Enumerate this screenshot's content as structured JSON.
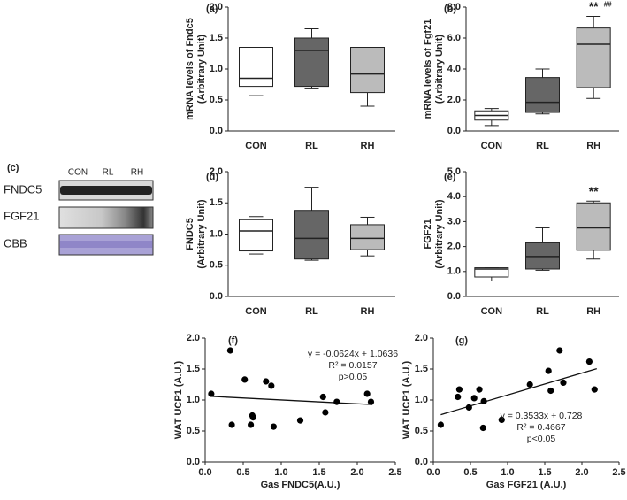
{
  "chart_data": [
    {
      "type": "box",
      "label": "(a)",
      "ylabel": [
        "mRNA levels of Fndc5",
        "(Arbitrary Unit)"
      ],
      "categories": [
        "CON",
        "RL",
        "RH"
      ],
      "colors": [
        "#ffffff",
        "#666666",
        "#bbbbbb"
      ],
      "boxes": [
        {
          "min": 0.57,
          "q1": 0.72,
          "median": 0.85,
          "q3": 1.35,
          "max": 1.55
        },
        {
          "min": 0.68,
          "q1": 0.72,
          "median": 1.3,
          "q3": 1.5,
          "max": 1.65
        },
        {
          "min": 0.4,
          "q1": 0.62,
          "median": 0.92,
          "q3": 1.35,
          "max": 1.35
        }
      ],
      "ylim": [
        0,
        2
      ],
      "yticks": [
        {
          "value": 0,
          "label": "0.0"
        },
        0.5,
        {
          "value": 1,
          "label": "1.0"
        },
        1.5,
        {
          "value": 2,
          "label": "2.0"
        }
      ]
    },
    {
      "type": "box",
      "label": "(b)",
      "ylabel": [
        "mRNA levels of Fgf21",
        "(Arbitrary Unit)"
      ],
      "categories": [
        "CON",
        "RL",
        "RH"
      ],
      "colors": [
        "#ffffff",
        "#666666",
        "#bbbbbb"
      ],
      "boxes": [
        {
          "min": 0.35,
          "q1": 0.7,
          "median": 1.0,
          "q3": 1.3,
          "max": 1.45
        },
        {
          "min": 1.1,
          "q1": 1.2,
          "median": 1.85,
          "q3": 3.45,
          "max": 4.0
        },
        {
          "min": 2.1,
          "q1": 2.8,
          "median": 5.6,
          "q3": 6.65,
          "max": 7.4
        }
      ],
      "annotations": [
        "**",
        "##"
      ],
      "ylim": [
        0,
        8
      ],
      "yticks": [
        {
          "value": 0,
          "label": "0.0"
        },
        {
          "value": 2,
          "label": "2.0"
        },
        {
          "value": 4,
          "label": "4.0"
        },
        {
          "value": 6,
          "label": "6.0"
        },
        {
          "value": 8,
          "label": "8.0"
        }
      ]
    },
    {
      "type": "box",
      "label": "(d)",
      "ylabel": [
        "FNDC5",
        "(Arbitrary Unit)"
      ],
      "categories": [
        "CON",
        "RL",
        "RH"
      ],
      "colors": [
        "#ffffff",
        "#666666",
        "#bbbbbb"
      ],
      "boxes": [
        {
          "min": 0.68,
          "q1": 0.73,
          "median": 1.05,
          "q3": 1.23,
          "max": 1.28
        },
        {
          "min": 0.58,
          "q1": 0.6,
          "median": 0.93,
          "q3": 1.38,
          "max": 1.75
        },
        {
          "min": 0.65,
          "q1": 0.75,
          "median": 0.93,
          "q3": 1.15,
          "max": 1.27
        }
      ],
      "ylim": [
        0,
        2
      ],
      "yticks": [
        {
          "value": 0,
          "label": "0.0"
        },
        0.5,
        {
          "value": 1,
          "label": "1.0"
        },
        1.5,
        {
          "value": 2,
          "label": "2.0"
        }
      ]
    },
    {
      "type": "box",
      "label": "(e)",
      "ylabel": [
        "FGF21",
        "(Arbitrary Unit)"
      ],
      "categories": [
        "CON",
        "RL",
        "RH"
      ],
      "colors": [
        "#ffffff",
        "#666666",
        "#bbbbbb"
      ],
      "boxes": [
        {
          "min": 0.62,
          "q1": 0.78,
          "median": 1.1,
          "q3": 1.15,
          "max": 1.15
        },
        {
          "min": 1.05,
          "q1": 1.1,
          "median": 1.6,
          "q3": 2.15,
          "max": 2.75
        },
        {
          "min": 1.5,
          "q1": 1.85,
          "median": 2.75,
          "q3": 3.75,
          "max": 3.82
        }
      ],
      "annotations": [
        "**"
      ],
      "ylim": [
        0,
        5
      ],
      "yticks": [
        {
          "value": 0,
          "label": "0.0"
        },
        {
          "value": 1,
          "label": "1.0"
        },
        {
          "value": 2,
          "label": "2.0"
        },
        {
          "value": 3,
          "label": "3.0"
        },
        {
          "value": 4,
          "label": "4.0"
        },
        {
          "value": 5,
          "label": "5.0"
        }
      ]
    },
    {
      "type": "scatter",
      "label": "(f)",
      "xlabel": "Gas FNDC5(A.U.)",
      "ylabel": [
        "WAT UCP1 (A.U.)"
      ],
      "color": "#000000",
      "x": [
        0.08,
        0.33,
        0.35,
        0.52,
        0.6,
        0.62,
        0.63,
        0.8,
        0.87,
        0.9,
        1.25,
        1.55,
        1.58,
        1.73,
        2.13,
        2.18
      ],
      "values": [
        1.1,
        1.8,
        0.6,
        1.33,
        0.6,
        0.75,
        0.72,
        1.3,
        1.23,
        0.57,
        0.67,
        1.05,
        0.8,
        0.97,
        1.1,
        0.97
      ],
      "trendline": {
        "slope": -0.0624,
        "intercept": 1.0636,
        "x": [
          0.08,
          2.2
        ]
      },
      "annotations": [
        "y = -0.0624x + 1.0636",
        "R² = 0.0157",
        "p>0.05"
      ],
      "xlim": [
        0,
        2.5
      ],
      "xticks": [
        {
          "value": 0,
          "label": "0.0"
        },
        0.5,
        {
          "value": 1,
          "label": "1.0"
        },
        1.5,
        {
          "value": 2,
          "label": "2.0"
        },
        2.5
      ],
      "ylim": [
        0,
        2
      ],
      "yticks": [
        {
          "value": 0,
          "label": "0.0"
        },
        0.5,
        {
          "value": 1,
          "label": "1.0"
        },
        1.5,
        {
          "value": 2,
          "label": "2.0"
        }
      ]
    },
    {
      "type": "scatter",
      "label": "(g)",
      "xlabel": "Gas FGF21 (A.U.)",
      "ylabel": [
        "WAT UCP1 (A.U.)"
      ],
      "color": "#000000",
      "x": [
        0.1,
        0.33,
        0.35,
        0.48,
        0.55,
        0.62,
        0.67,
        0.68,
        0.92,
        1.3,
        1.55,
        1.58,
        1.7,
        1.75,
        2.1,
        2.17
      ],
      "values": [
        0.6,
        1.05,
        1.17,
        0.88,
        1.03,
        1.17,
        0.55,
        0.98,
        0.68,
        1.25,
        1.47,
        1.15,
        1.8,
        1.28,
        1.62,
        1.17
      ],
      "trendline": {
        "slope": 0.3533,
        "intercept": 0.728,
        "x": [
          0.1,
          2.2
        ]
      },
      "annotations": [
        "y = 0.3533x + 0.728",
        "R² = 0.4667",
        "p<0.05"
      ],
      "xlim": [
        0,
        2.5
      ],
      "xticks": [
        {
          "value": 0,
          "label": "0.0"
        },
        0.5,
        {
          "value": 1,
          "label": "1.0"
        },
        1.5,
        {
          "value": 2,
          "label": "2.0"
        },
        2.5
      ],
      "ylim": [
        0,
        2
      ],
      "yticks": [
        {
          "value": 0,
          "label": "0.0"
        },
        0.5,
        {
          "value": 1,
          "label": "1.0"
        },
        1.5,
        {
          "value": 2,
          "label": "2.0"
        }
      ]
    }
  ],
  "blot": {
    "label": "(c)",
    "lanes": [
      "CON",
      "RL",
      "RH"
    ],
    "rows": [
      "FNDC5",
      "FGF21",
      "CBB"
    ]
  }
}
